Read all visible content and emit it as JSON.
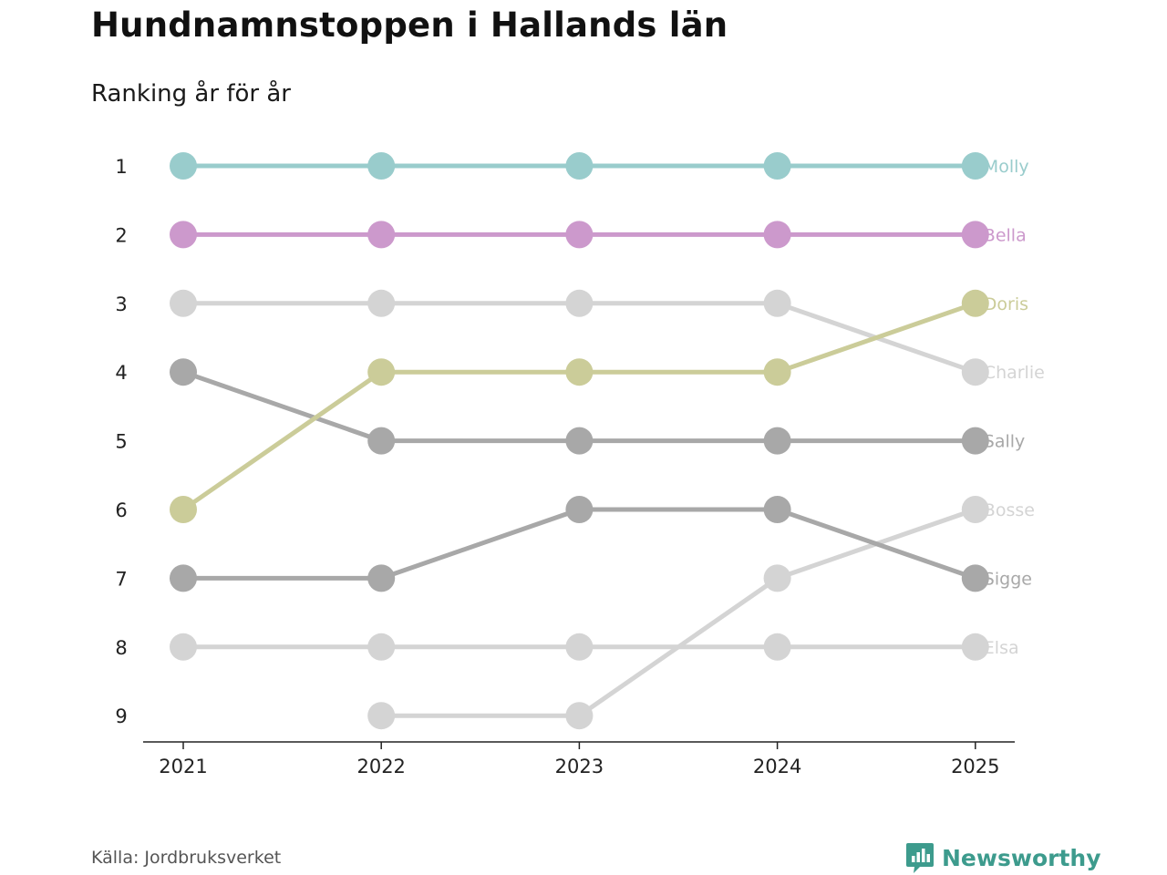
{
  "header": {
    "title": "Hundnamnstoppen i Hallands län",
    "subtitle": "Ranking år för år"
  },
  "footer": {
    "source": "Källa: Jordbruksverket",
    "brand": "Newsworthy",
    "brand_icon": "bar-chart-speech-icon",
    "brand_color": "#3d9b8d"
  },
  "chart_data": {
    "type": "line",
    "subtype": "bump",
    "title": "Hundnamnstoppen i Hallands län",
    "subtitle": "Ranking år för år",
    "x": [
      "2021",
      "2022",
      "2023",
      "2024",
      "2025"
    ],
    "ranks": [
      1,
      2,
      3,
      4,
      5,
      6,
      7,
      8,
      9
    ],
    "y_axis": "rank, 1 at top",
    "series": [
      {
        "name": "Charlie",
        "color": "#d4d4d4",
        "values": [
          3,
          3,
          3,
          3,
          4
        ]
      },
      {
        "name": "Elsa",
        "color": "#d4d4d4",
        "values": [
          8,
          8,
          8,
          8,
          8
        ]
      },
      {
        "name": "Bosse",
        "color": "#d4d4d4",
        "values": [
          null,
          9,
          9,
          7,
          6
        ]
      },
      {
        "name": "Sally",
        "color": "#a8a8a8",
        "values": [
          4,
          5,
          5,
          5,
          5
        ]
      },
      {
        "name": "Sigge",
        "color": "#a8a8a8",
        "values": [
          7,
          7,
          6,
          6,
          7
        ]
      },
      {
        "name": "Doris",
        "color": "#cbcc99",
        "values": [
          6,
          4,
          4,
          4,
          3
        ]
      },
      {
        "name": "Bella",
        "color": "#cc99cc",
        "values": [
          2,
          2,
          2,
          2,
          2
        ]
      },
      {
        "name": "Molly",
        "color": "#99cccc",
        "values": [
          1,
          1,
          1,
          1,
          1
        ]
      }
    ]
  }
}
